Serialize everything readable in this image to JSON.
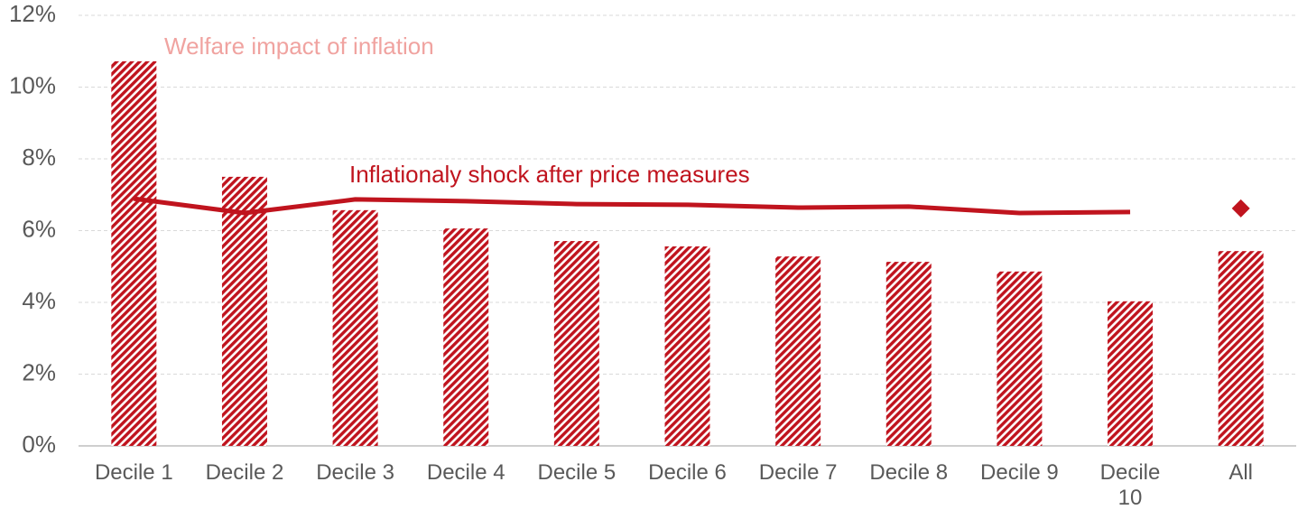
{
  "chart_data": {
    "type": "bar",
    "categories": [
      "Decile 1",
      "Decile 2",
      "Decile 3",
      "Decile 4",
      "Decile 5",
      "Decile 6",
      "Decile 7",
      "Decile 8",
      "Decile 9",
      "Decile 10",
      "All"
    ],
    "series": [
      {
        "name": "Welfare impact of inflation",
        "type": "bar",
        "color": "#c0141e",
        "label_color": "#f0a3a0",
        "values": [
          10.72,
          7.5,
          6.57,
          6.06,
          5.71,
          5.56,
          5.28,
          5.13,
          4.86,
          4.03,
          5.43
        ]
      },
      {
        "name": "Inflationaly shock after price measures",
        "type": "line",
        "color": "#c0141e",
        "values": [
          6.89,
          6.49,
          6.87,
          6.82,
          6.74,
          6.72,
          6.64,
          6.67,
          6.49,
          6.52,
          null
        ]
      },
      {
        "type": "diamond",
        "color": "#c0141e",
        "values": [
          null,
          null,
          null,
          null,
          null,
          null,
          null,
          null,
          null,
          null,
          6.62
        ]
      }
    ],
    "ylim": [
      0,
      12
    ],
    "yticks": [
      {
        "value": 0,
        "label": "0%"
      },
      {
        "value": 2,
        "label": "2%"
      },
      {
        "value": 4,
        "label": "4%"
      },
      {
        "value": 6,
        "label": "6%"
      },
      {
        "value": 8,
        "label": "8%"
      },
      {
        "value": 10,
        "label": "10%"
      },
      {
        "value": 12,
        "label": "12%"
      }
    ],
    "grid": true
  }
}
